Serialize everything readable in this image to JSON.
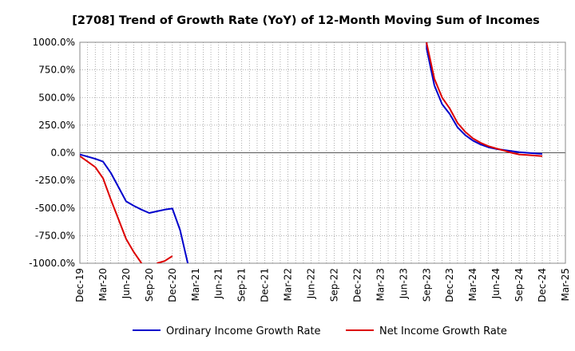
{
  "chart_data": {
    "type": "line",
    "title": "[2708]  Trend of Growth Rate (YoY) of 12-Month Moving Sum of Incomes",
    "xlabel": "",
    "ylabel": "",
    "ylim": [
      -1000,
      1000
    ],
    "y_ticks": [
      "1000.0%",
      "750.0%",
      "500.0%",
      "250.0%",
      "0.0%",
      "-250.0%",
      "-500.0%",
      "-750.0%",
      "-1000.0%"
    ],
    "y_tick_values": [
      1000,
      750,
      500,
      250,
      0,
      -250,
      -500,
      -750,
      -1000
    ],
    "x_ticks": [
      "Dec-19",
      "Mar-20",
      "Jun-20",
      "Sep-20",
      "Dec-20",
      "Mar-21",
      "Jun-21",
      "Sep-21",
      "Dec-21",
      "Mar-22",
      "Jun-22",
      "Sep-22",
      "Dec-22",
      "Mar-23",
      "Jun-23",
      "Sep-23",
      "Dec-23",
      "Mar-24",
      "Jun-24",
      "Sep-24",
      "Dec-24",
      "Mar-25"
    ],
    "grid": true,
    "legend": "bottom",
    "series": [
      {
        "name": "Ordinary Income Growth Rate",
        "color": "#0000cc",
        "points": [
          [
            "Dec-19",
            -15
          ],
          [
            "Jan-20",
            -35
          ],
          [
            "Feb-20",
            -55
          ],
          [
            "Mar-20",
            -80
          ],
          [
            "Apr-20",
            -180
          ],
          [
            "May-20",
            -310
          ],
          [
            "Jun-20",
            -440
          ],
          [
            "Jul-20",
            -480
          ],
          [
            "Aug-20",
            -515
          ],
          [
            "Sep-20",
            -545
          ],
          [
            "Oct-20",
            -530
          ],
          [
            "Nov-20",
            -515
          ],
          [
            "Dec-20",
            -505
          ],
          [
            "Jan-21",
            -700
          ],
          [
            "Feb-21",
            -1000
          ],
          [
            "Sep-23",
            1000
          ],
          [
            "Sep-23",
            940
          ],
          [
            "Oct-23",
            610
          ],
          [
            "Nov-23",
            440
          ],
          [
            "Dec-23",
            350
          ],
          [
            "Jan-24",
            230
          ],
          [
            "Feb-24",
            160
          ],
          [
            "Mar-24",
            110
          ],
          [
            "Apr-24",
            75
          ],
          [
            "May-24",
            50
          ],
          [
            "Jun-24",
            35
          ],
          [
            "Jul-24",
            25
          ],
          [
            "Aug-24",
            15
          ],
          [
            "Sep-24",
            5
          ],
          [
            "Oct-24",
            0
          ],
          [
            "Nov-24",
            -5
          ],
          [
            "Dec-24",
            -10
          ]
        ]
      },
      {
        "name": "Net Income Growth Rate",
        "color": "#dd0000",
        "points": [
          [
            "Dec-19",
            -30
          ],
          [
            "Jan-20",
            -80
          ],
          [
            "Feb-20",
            -130
          ],
          [
            "Mar-20",
            -230
          ],
          [
            "Apr-20",
            -420
          ],
          [
            "May-20",
            -600
          ],
          [
            "Jun-20",
            -780
          ],
          [
            "Jul-20",
            -900
          ],
          [
            "Aug-20",
            -1000
          ],
          [
            "Oct-20",
            -1000
          ],
          [
            "Nov-20",
            -980
          ],
          [
            "Dec-20",
            -935
          ],
          [
            "Sep-23",
            1000
          ],
          [
            "Sep-23",
            990
          ],
          [
            "Oct-23",
            670
          ],
          [
            "Nov-23",
            500
          ],
          [
            "Dec-23",
            400
          ],
          [
            "Jan-24",
            270
          ],
          [
            "Feb-24",
            190
          ],
          [
            "Mar-24",
            130
          ],
          [
            "Apr-24",
            90
          ],
          [
            "May-24",
            60
          ],
          [
            "Jun-24",
            40
          ],
          [
            "Jul-24",
            20
          ],
          [
            "Aug-24",
            0
          ],
          [
            "Sep-24",
            -15
          ],
          [
            "Oct-24",
            -20
          ],
          [
            "Nov-24",
            -25
          ],
          [
            "Dec-24",
            -30
          ]
        ]
      }
    ]
  }
}
